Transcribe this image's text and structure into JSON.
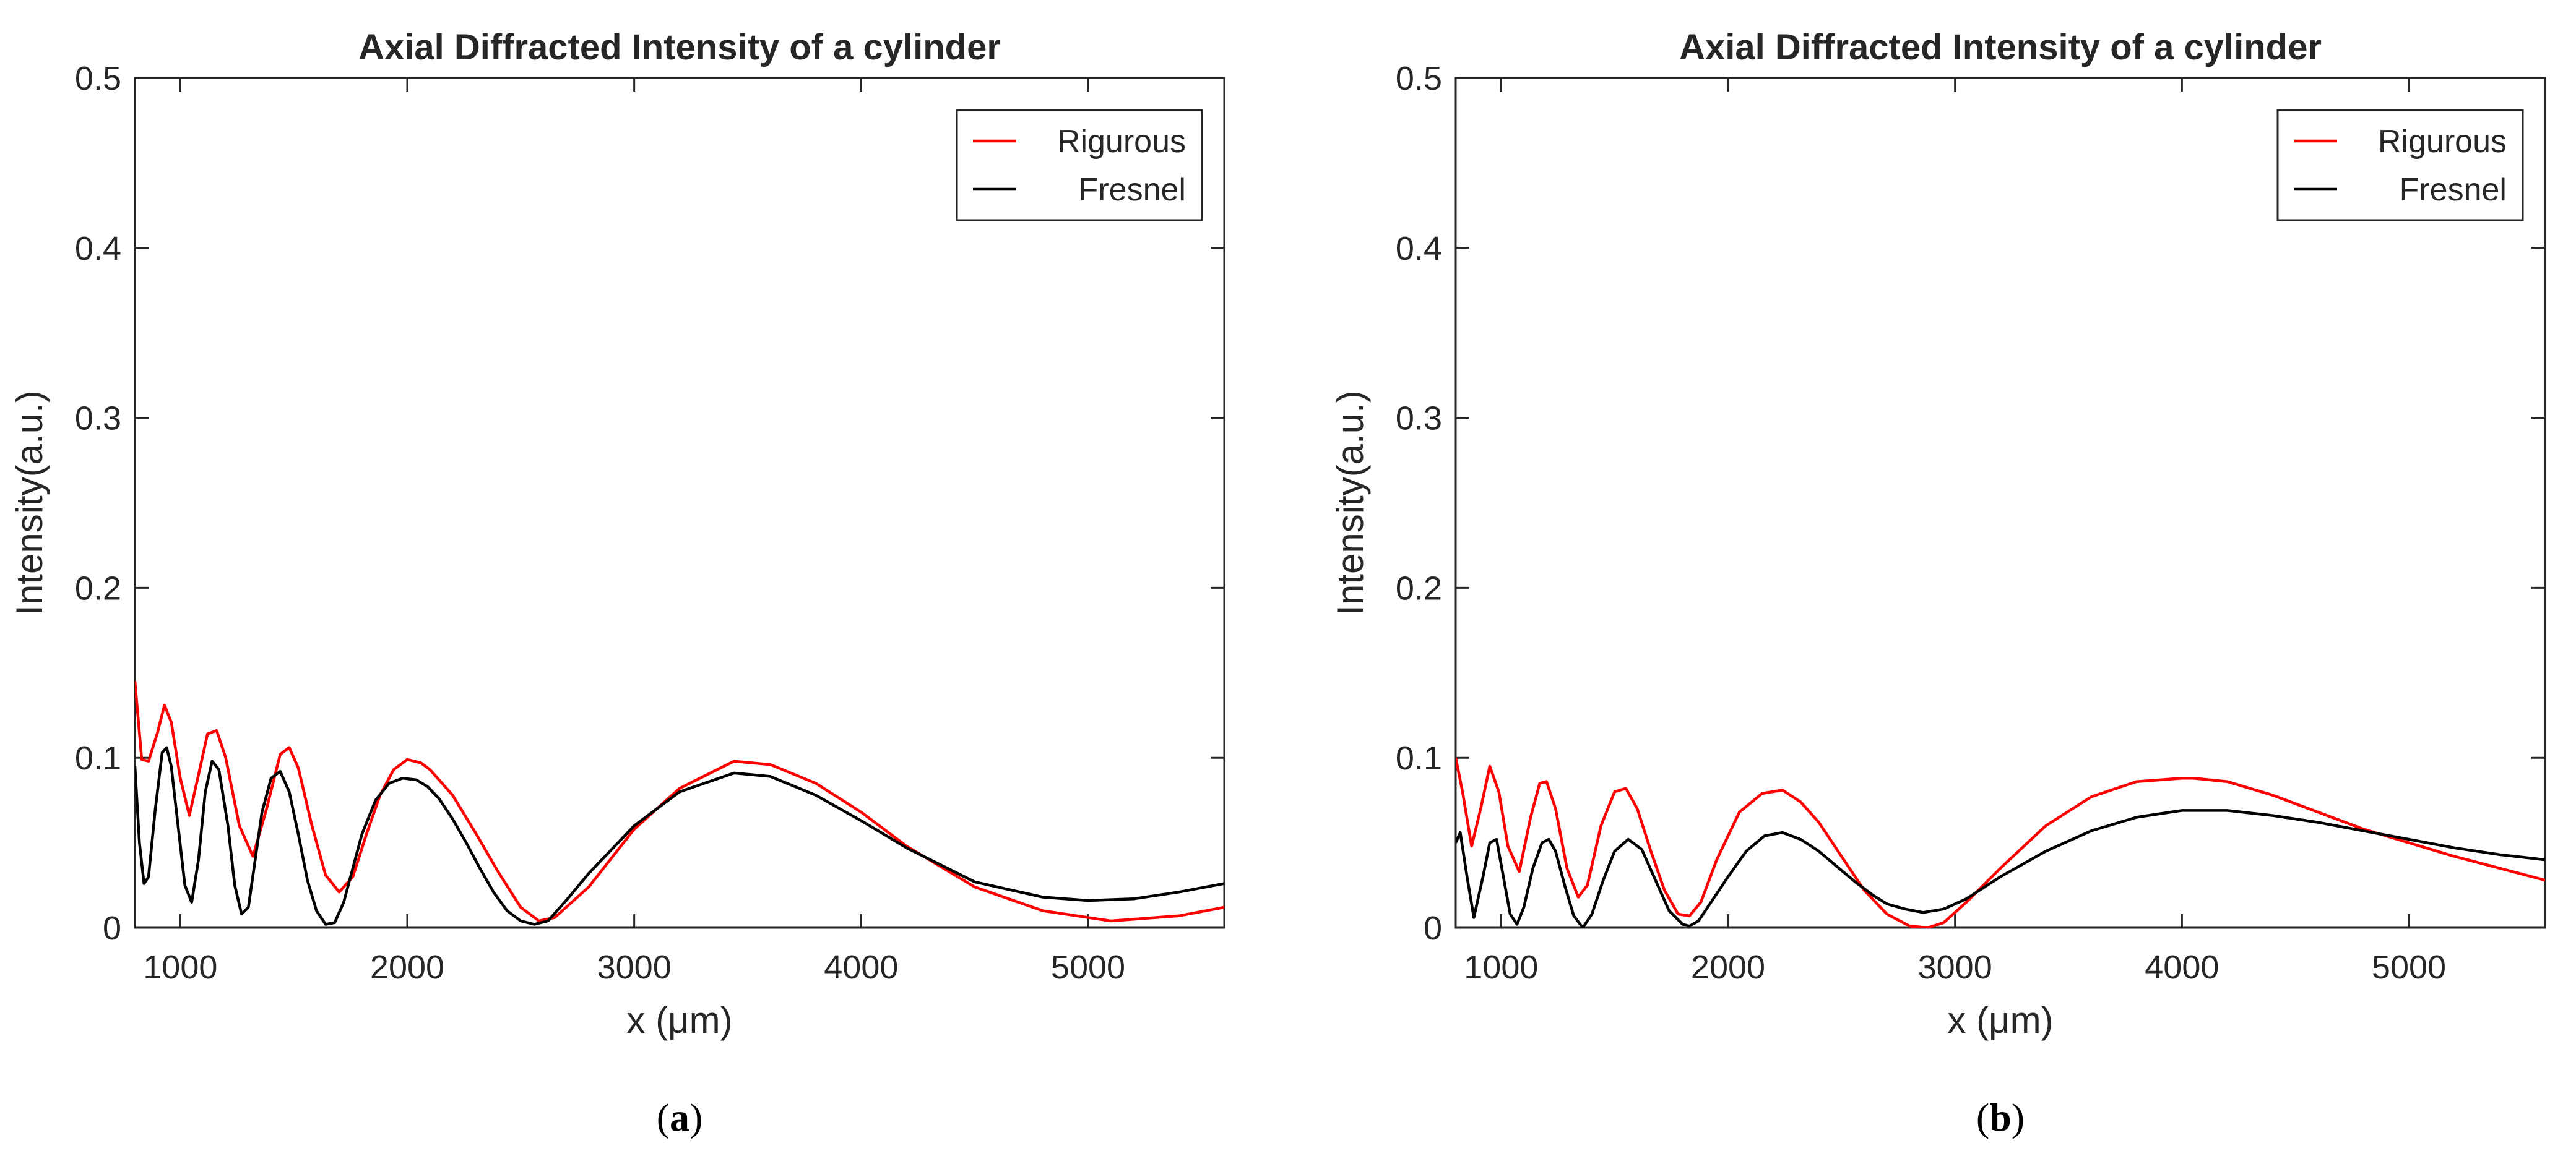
{
  "chart_data": [
    {
      "type": "line",
      "panel_label": "a",
      "title": "Axial Diffracted Intensity of a cylinder",
      "xlabel": "x (μm)",
      "ylabel": "Intensity(a.u.)",
      "xlim": [
        800,
        5600
      ],
      "ylim": [
        0,
        0.5
      ],
      "xticks": [
        1000,
        2000,
        3000,
        4000,
        5000
      ],
      "yticks": [
        0,
        0.1,
        0.2,
        0.3,
        0.4,
        0.5
      ],
      "grid": false,
      "legend_position": "top-right",
      "series": [
        {
          "name": "Rigurous",
          "color": "#ff0000",
          "x": [
            800,
            830,
            860,
            900,
            930,
            960,
            1000,
            1040,
            1080,
            1120,
            1160,
            1200,
            1260,
            1320,
            1380,
            1440,
            1480,
            1520,
            1580,
            1640,
            1700,
            1760,
            1820,
            1880,
            1940,
            2000,
            2060,
            2100,
            2200,
            2300,
            2400,
            2500,
            2580,
            2650,
            2800,
            3000,
            3200,
            3440,
            3600,
            3800,
            4000,
            4200,
            4500,
            4800,
            5100,
            5400,
            5600
          ],
          "y": [
            0.145,
            0.099,
            0.098,
            0.115,
            0.131,
            0.121,
            0.088,
            0.066,
            0.09,
            0.114,
            0.116,
            0.1,
            0.06,
            0.042,
            0.07,
            0.102,
            0.106,
            0.094,
            0.06,
            0.031,
            0.021,
            0.03,
            0.055,
            0.078,
            0.093,
            0.099,
            0.097,
            0.093,
            0.078,
            0.056,
            0.033,
            0.012,
            0.004,
            0.006,
            0.024,
            0.058,
            0.082,
            0.098,
            0.096,
            0.085,
            0.068,
            0.048,
            0.024,
            0.01,
            0.004,
            0.007,
            0.012
          ]
        },
        {
          "name": "Fresnel",
          "color": "#000000",
          "x": [
            800,
            820,
            840,
            860,
            890,
            920,
            940,
            960,
            990,
            1020,
            1050,
            1080,
            1110,
            1140,
            1170,
            1210,
            1240,
            1270,
            1300,
            1330,
            1360,
            1400,
            1440,
            1480,
            1520,
            1560,
            1600,
            1640,
            1680,
            1720,
            1760,
            1800,
            1860,
            1920,
            1980,
            2040,
            2090,
            2140,
            2200,
            2260,
            2320,
            2380,
            2440,
            2500,
            2560,
            2620,
            2700,
            2800,
            3000,
            3200,
            3440,
            3600,
            3800,
            4000,
            4200,
            4500,
            4800,
            5000,
            5200,
            5400,
            5600
          ],
          "y": [
            0.095,
            0.05,
            0.026,
            0.03,
            0.07,
            0.103,
            0.106,
            0.095,
            0.06,
            0.025,
            0.015,
            0.04,
            0.08,
            0.098,
            0.093,
            0.06,
            0.025,
            0.008,
            0.012,
            0.04,
            0.068,
            0.088,
            0.092,
            0.08,
            0.055,
            0.028,
            0.01,
            0.002,
            0.003,
            0.015,
            0.035,
            0.055,
            0.075,
            0.085,
            0.088,
            0.087,
            0.083,
            0.076,
            0.064,
            0.05,
            0.035,
            0.021,
            0.01,
            0.004,
            0.002,
            0.004,
            0.016,
            0.032,
            0.06,
            0.08,
            0.091,
            0.089,
            0.078,
            0.063,
            0.047,
            0.027,
            0.018,
            0.016,
            0.017,
            0.021,
            0.026
          ]
        }
      ]
    },
    {
      "type": "line",
      "panel_label": "b",
      "title": "Axial Diffracted Intensity of a cylinder",
      "xlabel": "x (μm)",
      "ylabel": "Intensity(a.u.)",
      "xlim": [
        800,
        5600
      ],
      "ylim": [
        0,
        0.5
      ],
      "xticks": [
        1000,
        2000,
        3000,
        4000,
        5000
      ],
      "yticks": [
        0,
        0.1,
        0.2,
        0.3,
        0.4,
        0.5
      ],
      "grid": false,
      "legend_position": "top-right",
      "series": [
        {
          "name": "Rigurous",
          "color": "#ff0000",
          "x": [
            800,
            830,
            870,
            910,
            950,
            990,
            1030,
            1080,
            1130,
            1170,
            1200,
            1240,
            1290,
            1340,
            1380,
            1440,
            1500,
            1550,
            1600,
            1660,
            1720,
            1780,
            1830,
            1880,
            1950,
            2050,
            2150,
            2240,
            2320,
            2400,
            2500,
            2600,
            2700,
            2800,
            2880,
            2950,
            3050,
            3200,
            3400,
            3600,
            3800,
            4000,
            4050,
            4200,
            4400,
            4600,
            4800,
            5000,
            5200,
            5400,
            5600
          ],
          "y": [
            0.1,
            0.08,
            0.048,
            0.07,
            0.095,
            0.08,
            0.048,
            0.033,
            0.065,
            0.085,
            0.086,
            0.07,
            0.035,
            0.018,
            0.025,
            0.06,
            0.08,
            0.082,
            0.07,
            0.045,
            0.022,
            0.008,
            0.007,
            0.015,
            0.04,
            0.068,
            0.079,
            0.081,
            0.074,
            0.062,
            0.042,
            0.022,
            0.008,
            0.001,
            0.0,
            0.003,
            0.015,
            0.035,
            0.06,
            0.077,
            0.086,
            0.088,
            0.088,
            0.086,
            0.078,
            0.068,
            0.058,
            0.05,
            0.042,
            0.035,
            0.028
          ]
        },
        {
          "name": "Fresnel",
          "color": "#000000",
          "x": [
            800,
            820,
            850,
            880,
            920,
            950,
            980,
            1010,
            1040,
            1070,
            1100,
            1140,
            1180,
            1210,
            1240,
            1280,
            1320,
            1360,
            1400,
            1450,
            1500,
            1560,
            1620,
            1680,
            1740,
            1800,
            1830,
            1870,
            1930,
            2000,
            2080,
            2160,
            2240,
            2320,
            2400,
            2480,
            2560,
            2640,
            2700,
            2780,
            2860,
            2950,
            3050,
            3200,
            3400,
            3600,
            3800,
            4000,
            4200,
            4400,
            4600,
            4800,
            5000,
            5200,
            5400,
            5600
          ],
          "y": [
            0.05,
            0.056,
            0.03,
            0.006,
            0.03,
            0.05,
            0.052,
            0.03,
            0.008,
            0.002,
            0.012,
            0.035,
            0.05,
            0.052,
            0.045,
            0.025,
            0.007,
            0.0,
            0.008,
            0.028,
            0.045,
            0.052,
            0.046,
            0.028,
            0.01,
            0.002,
            0.001,
            0.004,
            0.016,
            0.03,
            0.045,
            0.054,
            0.056,
            0.052,
            0.045,
            0.036,
            0.027,
            0.019,
            0.014,
            0.011,
            0.009,
            0.011,
            0.017,
            0.03,
            0.045,
            0.057,
            0.065,
            0.069,
            0.069,
            0.066,
            0.062,
            0.057,
            0.052,
            0.047,
            0.043,
            0.04
          ]
        }
      ]
    }
  ]
}
